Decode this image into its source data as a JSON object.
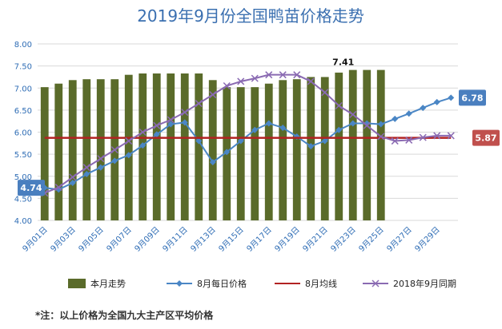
{
  "chart_data": {
    "type": "bar",
    "title": "2019年9月份全国鸭苗价格走势",
    "y_ticks": [
      "4.00",
      "4.50",
      "5.00",
      "5.50",
      "6.00",
      "6.50",
      "7.00",
      "7.50",
      "8.00"
    ],
    "ylim": [
      4.0,
      8.0
    ],
    "grid": true,
    "legend_position": "bottom",
    "x": [
      "9月01日",
      "9月02日",
      "9月03日",
      "9月04日",
      "9月05日",
      "9月06日",
      "9月07日",
      "9月08日",
      "9月09日",
      "9月10日",
      "9月11日",
      "9月12日",
      "9月13日",
      "9月14日",
      "9月15日",
      "9月16日",
      "9月17日",
      "9月18日",
      "9月19日",
      "9月20日",
      "9月21日",
      "9月22日",
      "9月23日",
      "9月24日",
      "9月25日",
      "9月26日",
      "9月27日",
      "9月28日",
      "9月29日",
      "9月30日"
    ],
    "x_tick_labels": [
      "9月01日",
      "9月03日",
      "9月05日",
      "9月07日",
      "9月09日",
      "9月11日",
      "9月13日",
      "9月15日",
      "9月17日",
      "9月19日",
      "9月21日",
      "9月23日",
      "9月25日",
      "9月27日",
      "9月29日"
    ],
    "series": [
      {
        "name": "本月走势",
        "kind": "bar",
        "color": "#5a6b2a",
        "values": [
          7.02,
          7.1,
          7.18,
          7.2,
          7.2,
          7.2,
          7.3,
          7.33,
          7.33,
          7.33,
          7.33,
          7.33,
          7.18,
          7.02,
          7.02,
          7.02,
          7.1,
          7.18,
          7.2,
          7.25,
          7.25,
          7.35,
          7.41,
          7.41,
          7.41,
          null,
          null,
          null,
          null,
          null
        ]
      },
      {
        "name": "8月每日价格",
        "kind": "line",
        "marker": "diamond",
        "color": "#4a86c5",
        "values": [
          4.74,
          4.7,
          4.85,
          5.05,
          5.2,
          5.35,
          5.48,
          5.7,
          5.95,
          6.18,
          6.22,
          5.8,
          5.32,
          5.55,
          5.8,
          6.05,
          6.2,
          6.1,
          5.9,
          5.68,
          5.8,
          6.05,
          6.2,
          6.2,
          6.18,
          6.3,
          6.42,
          6.55,
          6.68,
          6.78
        ]
      },
      {
        "name": "8月均线",
        "kind": "line",
        "color": "#b22222",
        "values": [
          5.87,
          5.87,
          5.87,
          5.87,
          5.87,
          5.87,
          5.87,
          5.87,
          5.87,
          5.87,
          5.87,
          5.87,
          5.87,
          5.87,
          5.87,
          5.87,
          5.87,
          5.87,
          5.87,
          5.87,
          5.87,
          5.87,
          5.87,
          5.87,
          5.87,
          5.87,
          5.87,
          5.87,
          5.87,
          5.87
        ]
      },
      {
        "name": "2018年9月同期",
        "kind": "line",
        "marker": "x",
        "color": "#8a6ab2",
        "values": [
          4.62,
          4.75,
          4.98,
          5.2,
          5.4,
          5.6,
          5.8,
          6.0,
          6.15,
          6.28,
          6.45,
          6.65,
          6.85,
          7.05,
          7.15,
          7.22,
          7.3,
          7.3,
          7.3,
          7.15,
          6.9,
          6.6,
          6.4,
          6.15,
          5.9,
          5.8,
          5.82,
          5.88,
          5.92,
          5.92
        ]
      }
    ],
    "annotations": {
      "peak_label": "7.41",
      "start_label": "4.74",
      "end_label": "6.78",
      "avg_label": "5.87"
    },
    "footnote": "*注：以上价格为全国九大主产区平均价格"
  },
  "colors": {
    "title": "#3a6fb0",
    "grid": "#d9d9d9",
    "axis_text": "#2f6db5",
    "callout_blue": "#4a7fbf",
    "callout_red": "#c0504d"
  }
}
